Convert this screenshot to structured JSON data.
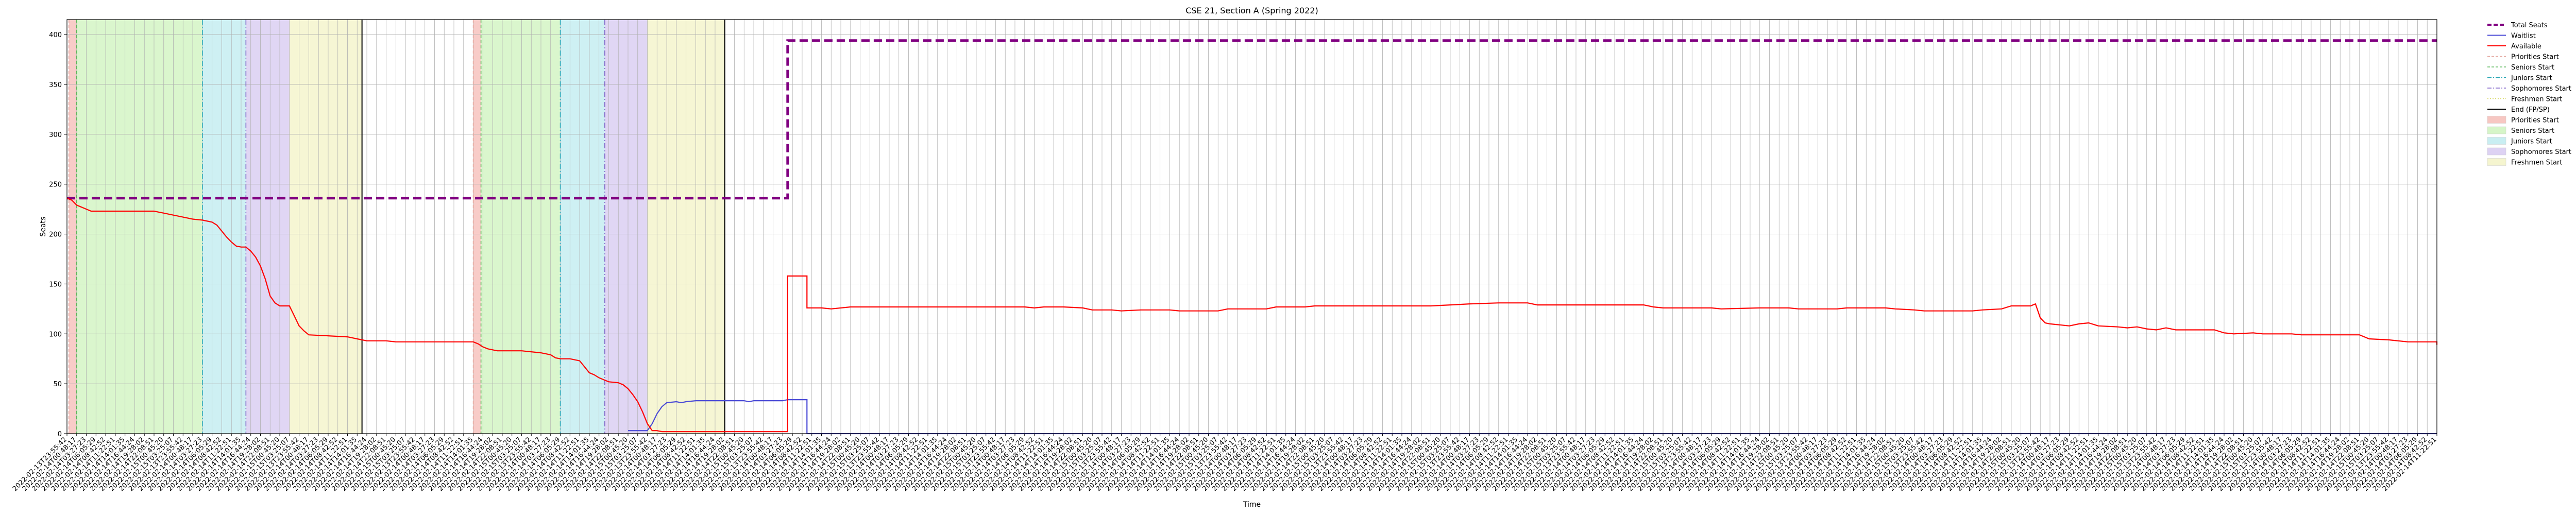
{
  "chart_data": {
    "type": "line",
    "title": "CSE 21, Section A (Spring 2022)",
    "xlabel": "Time",
    "ylabel": "Seats",
    "ylim": [
      0,
      415
    ],
    "y_ticks": [
      0,
      50,
      100,
      150,
      200,
      250,
      300,
      350,
      400
    ],
    "grid": true,
    "legend_placement": "outside-top-right",
    "x_tick_labels": [
      "2022-02-13T23:55:42",
      "2022-02-14T00:48:17",
      "2022-02-14T03:27:23",
      "2022-02-14T06:05:29",
      "2022-02-14T08:42:52",
      "2022-02-14T11:22:51",
      "2022-02-14T14:01:35",
      "2022-02-14T16:44:24",
      "2022-02-14T19:28:02",
      "2022-02-14T22:08:51",
      "2022-02-15T00:45:20",
      "2022-02-15T03:25:07"
    ],
    "x_range": [
      0,
      245
    ],
    "periods": [
      {
        "name": "Priorities Start",
        "start": 0.2,
        "end": 1,
        "color": "#f7c7c2"
      },
      {
        "name": "Seniors Start",
        "start": 1,
        "end": 14,
        "color": "#d6f5c8"
      },
      {
        "name": "Juniors Start",
        "start": 14,
        "end": 18.5,
        "color": "#c9eef2"
      },
      {
        "name": "Sophomores Start",
        "start": 18.5,
        "end": 23,
        "color": "#ddd2f3"
      },
      {
        "name": "Freshmen Start",
        "start": 23,
        "end": 30.5,
        "color": "#f5f5cf"
      },
      {
        "name": "Priorities Start",
        "start": 42,
        "end": 42.8,
        "color": "#f7c7c2"
      },
      {
        "name": "Seniors Start",
        "start": 42.8,
        "end": 51,
        "color": "#d6f5c8"
      },
      {
        "name": "Juniors Start",
        "start": 51,
        "end": 55.6,
        "color": "#c9eef2"
      },
      {
        "name": "Sophomores Start",
        "start": 55.6,
        "end": 60,
        "color": "#ddd2f3"
      },
      {
        "name": "Freshmen Start",
        "start": 60,
        "end": 68,
        "color": "#f5f5cf"
      }
    ],
    "start_lines": [
      {
        "name": "Priorities Start",
        "x": 0.2,
        "color": "#e3a79f",
        "dash": "6,4"
      },
      {
        "name": "Seniors Start",
        "x": 1,
        "color": "#5cb85c",
        "dash": "6,4"
      },
      {
        "name": "Juniors Start",
        "x": 14,
        "color": "#2aa7b5",
        "dash": "10,4,2,4"
      },
      {
        "name": "Sophomores Start",
        "x": 18.5,
        "color": "#7a5cc6",
        "dash": "10,4,2,4"
      },
      {
        "name": "Priorities Start",
        "x": 42,
        "color": "#e3a79f",
        "dash": "6,4"
      },
      {
        "name": "Seniors Start",
        "x": 42.8,
        "color": "#5cb85c",
        "dash": "6,4"
      },
      {
        "name": "Juniors Start",
        "x": 51,
        "color": "#2aa7b5",
        "dash": "10,4,2,4"
      },
      {
        "name": "Sophomores Start",
        "x": 55.6,
        "color": "#7a5cc6",
        "dash": "10,4,2,4"
      }
    ],
    "end_lines": [
      30.5,
      68
    ],
    "series": [
      {
        "name": "Total Seats",
        "color": "#800080",
        "style": "dashed",
        "points": [
          [
            0,
            236
          ],
          [
            74.5,
            236
          ],
          [
            74.5,
            394
          ],
          [
            245,
            394
          ]
        ]
      },
      {
        "name": "Waitlist",
        "color": "#4b4bd6",
        "style": "solid",
        "points": [
          [
            58,
            3
          ],
          [
            60,
            3
          ],
          [
            60.5,
            10
          ],
          [
            61,
            20
          ],
          [
            61.5,
            27
          ],
          [
            62,
            31
          ],
          [
            63,
            32
          ],
          [
            63.5,
            31
          ],
          [
            64,
            32
          ],
          [
            65,
            33
          ],
          [
            70,
            33
          ],
          [
            70.5,
            32
          ],
          [
            71,
            33
          ],
          [
            74,
            33
          ],
          [
            74.5,
            34
          ],
          [
            76.5,
            34
          ],
          [
            76.5,
            0
          ],
          [
            245,
            0
          ]
        ]
      },
      {
        "name": "Available",
        "color": "#ff0000",
        "style": "solid",
        "points": [
          [
            0,
            236
          ],
          [
            0.5,
            234
          ],
          [
            1,
            229
          ],
          [
            1.5,
            227
          ],
          [
            2,
            225
          ],
          [
            2.5,
            223
          ],
          [
            9,
            223
          ],
          [
            9.5,
            222
          ],
          [
            10,
            221
          ],
          [
            11,
            219
          ],
          [
            12,
            217
          ],
          [
            13,
            215
          ],
          [
            14,
            214
          ],
          [
            15,
            212
          ],
          [
            15.5,
            209
          ],
          [
            16,
            203
          ],
          [
            16.5,
            197
          ],
          [
            17,
            192
          ],
          [
            17.5,
            188
          ],
          [
            18,
            187
          ],
          [
            18.5,
            187
          ],
          [
            19,
            183
          ],
          [
            19.5,
            177
          ],
          [
            20,
            168
          ],
          [
            20.5,
            155
          ],
          [
            21,
            138
          ],
          [
            21.5,
            131
          ],
          [
            22,
            128
          ],
          [
            23,
            128
          ],
          [
            23.5,
            118
          ],
          [
            24,
            108
          ],
          [
            24.5,
            103
          ],
          [
            25,
            99
          ],
          [
            27,
            98
          ],
          [
            29,
            97
          ],
          [
            30,
            95
          ],
          [
            31,
            93
          ],
          [
            33,
            93
          ],
          [
            34,
            92
          ],
          [
            42,
            92
          ],
          [
            42.5,
            90
          ],
          [
            43,
            87
          ],
          [
            43.5,
            85
          ],
          [
            44,
            84
          ],
          [
            44.5,
            83
          ],
          [
            47,
            83
          ],
          [
            48,
            82
          ],
          [
            49,
            81
          ],
          [
            50,
            79
          ],
          [
            50.5,
            76
          ],
          [
            51,
            75
          ],
          [
            52,
            75
          ],
          [
            53,
            73
          ],
          [
            53.5,
            67
          ],
          [
            54,
            61
          ],
          [
            54.5,
            59
          ],
          [
            55,
            56
          ],
          [
            55.5,
            54
          ],
          [
            56,
            52
          ],
          [
            57,
            51
          ],
          [
            57.5,
            49
          ],
          [
            58,
            45
          ],
          [
            58.5,
            39
          ],
          [
            59,
            32
          ],
          [
            59.5,
            22
          ],
          [
            60,
            10
          ],
          [
            60.5,
            3
          ],
          [
            61,
            3
          ],
          [
            61.5,
            2
          ],
          [
            74.5,
            2
          ],
          [
            74.5,
            158
          ],
          [
            76.5,
            158
          ],
          [
            76.5,
            126
          ],
          [
            78,
            126
          ],
          [
            79,
            125
          ],
          [
            81,
            127
          ],
          [
            99,
            127
          ],
          [
            100,
            126
          ],
          [
            101,
            127
          ],
          [
            103,
            127
          ],
          [
            105,
            126
          ],
          [
            106,
            124
          ],
          [
            108,
            124
          ],
          [
            109,
            123
          ],
          [
            111,
            124
          ],
          [
            114,
            124
          ],
          [
            115,
            123
          ],
          [
            119,
            123
          ],
          [
            120,
            125
          ],
          [
            124,
            125
          ],
          [
            125,
            127
          ],
          [
            128,
            127
          ],
          [
            129,
            128
          ],
          [
            141,
            128
          ],
          [
            143,
            129
          ],
          [
            145,
            130
          ],
          [
            148,
            131
          ],
          [
            151,
            131
          ],
          [
            152,
            129
          ],
          [
            163,
            129
          ],
          [
            164,
            127
          ],
          [
            165,
            126
          ],
          [
            170,
            126
          ],
          [
            171,
            125
          ],
          [
            175,
            126
          ],
          [
            178,
            126
          ],
          [
            179,
            125
          ],
          [
            183,
            125
          ],
          [
            184,
            126
          ],
          [
            188,
            126
          ],
          [
            189,
            125
          ],
          [
            191,
            124
          ],
          [
            192,
            123
          ],
          [
            197,
            123
          ],
          [
            198,
            124
          ],
          [
            200,
            125
          ],
          [
            201,
            128
          ],
          [
            203,
            128
          ],
          [
            203.5,
            130
          ],
          [
            204,
            116
          ],
          [
            204.5,
            111
          ],
          [
            205,
            110
          ],
          [
            206,
            109
          ],
          [
            207,
            108
          ],
          [
            208,
            110
          ],
          [
            209,
            111
          ],
          [
            210,
            108
          ],
          [
            212,
            107
          ],
          [
            213,
            106
          ],
          [
            214,
            107
          ],
          [
            215,
            105
          ],
          [
            216,
            104
          ],
          [
            217,
            106
          ],
          [
            218,
            104
          ],
          [
            222,
            104
          ],
          [
            223,
            101
          ],
          [
            224,
            100
          ],
          [
            226,
            101
          ],
          [
            227,
            100
          ],
          [
            230,
            100
          ],
          [
            231,
            99
          ],
          [
            237,
            99
          ],
          [
            238,
            95
          ],
          [
            240,
            94
          ],
          [
            242,
            92
          ],
          [
            245,
            92
          ],
          [
            246,
            91
          ],
          [
            248,
            90
          ],
          [
            250,
            90
          ],
          [
            251,
            89
          ],
          [
            253,
            89
          ]
        ]
      }
    ]
  },
  "legend": [
    {
      "label": "Total Seats",
      "kind": "line",
      "color": "#800080",
      "dash": "8,4",
      "width": 4
    },
    {
      "label": "Waitlist",
      "kind": "line",
      "color": "#4b4bd6",
      "dash": "",
      "width": 2
    },
    {
      "label": "Available",
      "kind": "line",
      "color": "#ff0000",
      "dash": "",
      "width": 2
    },
    {
      "label": "Priorities Start",
      "kind": "line",
      "color": "#e3a79f",
      "dash": "5,3",
      "width": 1.5
    },
    {
      "label": "Seniors Start",
      "kind": "line",
      "color": "#5cb85c",
      "dash": "5,3",
      "width": 1.5
    },
    {
      "label": "Juniors Start",
      "kind": "line",
      "color": "#2aa7b5",
      "dash": "8,3,2,3",
      "width": 1.5
    },
    {
      "label": "Sophomores Start",
      "kind": "line",
      "color": "#7a5cc6",
      "dash": "8,3,2,3",
      "width": 1.5
    },
    {
      "label": "Freshmen Start",
      "kind": "line",
      "color": "#d9d96a",
      "dash": "2,3",
      "width": 1.5
    },
    {
      "label": "End (FP/SP)",
      "kind": "line",
      "color": "#000000",
      "dash": "",
      "width": 2
    },
    {
      "label": "Priorities Start",
      "kind": "patch",
      "color": "#f7c7c2"
    },
    {
      "label": "Seniors Start",
      "kind": "patch",
      "color": "#d6f5c8"
    },
    {
      "label": "Juniors Start",
      "kind": "patch",
      "color": "#c9eef2"
    },
    {
      "label": "Sophomores Start",
      "kind": "patch",
      "color": "#ddd2f3"
    },
    {
      "label": "Freshmen Start",
      "kind": "patch",
      "color": "#f5f5cf"
    }
  ]
}
